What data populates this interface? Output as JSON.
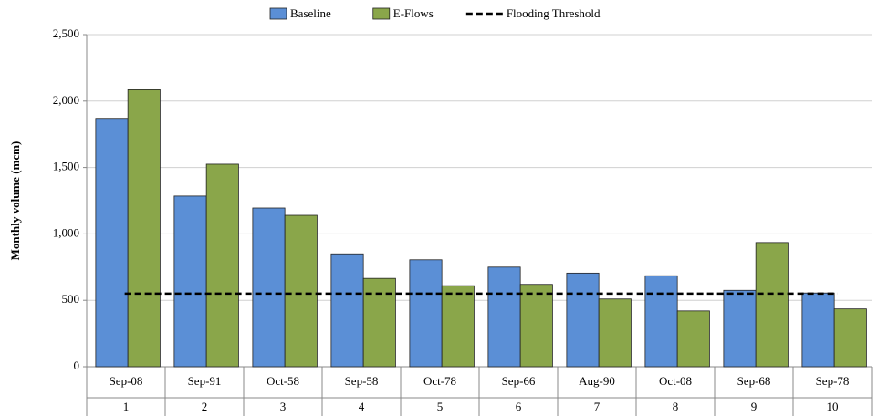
{
  "chart_data": {
    "type": "bar",
    "y_label": "Monthly volume (mcm)",
    "categories": [
      "Sep-08",
      "Sep-91",
      "Oct-58",
      "Sep-58",
      "Oct-78",
      "Sep-66",
      "Aug-90",
      "Oct-08",
      "Sep-68",
      "Sep-78"
    ],
    "ranks": [
      1,
      2,
      3,
      4,
      5,
      6,
      7,
      8,
      9,
      10
    ],
    "series": [
      {
        "name": "Baseline",
        "color": "#5b8fd6",
        "values": [
          1870,
          1285,
          1195,
          850,
          805,
          750,
          705,
          685,
          575,
          555
        ]
      },
      {
        "name": "E-Flows",
        "color": "#8aa64a",
        "values": [
          2085,
          1525,
          1140,
          665,
          610,
          620,
          510,
          420,
          935,
          435
        ]
      }
    ],
    "threshold": {
      "name": "Flooding Threshold",
      "value": 550
    },
    "ylim": [
      0,
      2500
    ],
    "yticks": [
      0,
      500,
      {
        "value": 1000,
        "label": "1,000"
      },
      {
        "value": 1500,
        "label": "1,500"
      },
      {
        "value": 2000,
        "label": "2,000"
      },
      {
        "value": 2500,
        "label": "2,500"
      }
    ],
    "grid": true
  }
}
